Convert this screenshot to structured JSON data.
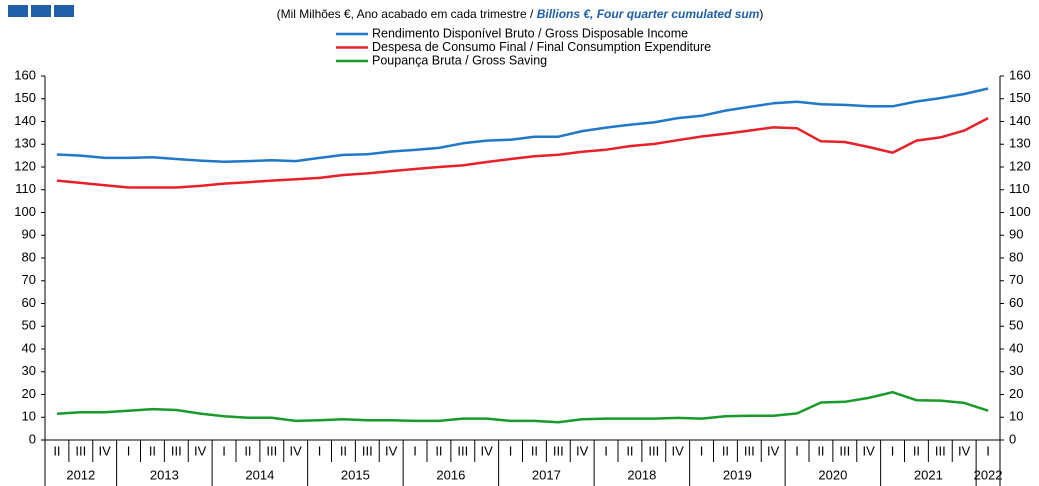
{
  "chart_data": {
    "type": "line",
    "subtitle_pt": "(Mil Milhões  €, Ano acabado em cada trimestre / ",
    "subtitle_en": "Billions €, Four quarter cumulated sum",
    "subtitle_end": ")",
    "groups": [
      {
        "label": "2012",
        "quarters": [
          "II",
          "III",
          "IV"
        ]
      },
      {
        "label": "2013",
        "quarters": [
          "I",
          "II",
          "III",
          "IV"
        ]
      },
      {
        "label": "2014",
        "quarters": [
          "I",
          "II",
          "III",
          "IV"
        ]
      },
      {
        "label": "2015",
        "quarters": [
          "I",
          "II",
          "III",
          "IV"
        ]
      },
      {
        "label": "2016",
        "quarters": [
          "I",
          "II",
          "III",
          "IV"
        ]
      },
      {
        "label": "2017",
        "quarters": [
          "I",
          "II",
          "III",
          "IV"
        ]
      },
      {
        "label": "2018",
        "quarters": [
          "I",
          "II",
          "III",
          "IV"
        ]
      },
      {
        "label": "2019",
        "quarters": [
          "I",
          "II",
          "III",
          "IV"
        ]
      },
      {
        "label": "2020",
        "quarters": [
          "I",
          "II",
          "III",
          "IV"
        ]
      },
      {
        "label": "2021",
        "quarters": [
          "I",
          "II",
          "III",
          "IV"
        ]
      },
      {
        "label": "2022",
        "quarters": [
          "I"
        ]
      }
    ],
    "series": [
      {
        "name": "Rendimento Disponível Bruto / Gross Disposable Income",
        "color": "#1f78c8",
        "values": [
          125.5,
          125,
          124,
          124,
          124.3,
          123.5,
          122.8,
          122.3,
          122.6,
          123,
          122.6,
          124,
          125.3,
          125.6,
          126.8,
          127.5,
          128.4,
          130.4,
          131.6,
          132,
          133.3,
          133.3,
          135.8,
          137.3,
          138.6,
          139.6,
          141.5,
          142.5,
          144.8,
          146.4,
          148,
          148.7,
          147.6,
          147.3,
          146.7,
          146.7,
          148.8,
          150.3,
          152.1,
          154.5
        ]
      },
      {
        "name": "Despesa de Consumo Final / Final Consumption Expenditure",
        "color": "#e8202a",
        "values": [
          114,
          113,
          112,
          111,
          111,
          111,
          111.7,
          112.7,
          113.3,
          114,
          114.6,
          115.2,
          116.5,
          117.2,
          118.2,
          119.1,
          120,
          120.7,
          122.2,
          123.5,
          124.7,
          125.4,
          126.7,
          127.6,
          129.2,
          130.1,
          131.8,
          133.4,
          134.6,
          136,
          137.4,
          137,
          131.3,
          131,
          128.8,
          126.3,
          131.6,
          133,
          136,
          141.5
        ]
      },
      {
        "name": "Poupança Bruta / Gross Saving",
        "color": "#1a9a2a",
        "values": [
          11.5,
          12.2,
          12.2,
          12.9,
          13.6,
          13.2,
          11.6,
          10.4,
          9.8,
          9.8,
          8.4,
          8.7,
          9.1,
          8.7,
          8.7,
          8.4,
          8.4,
          9.4,
          9.4,
          8.4,
          8.4,
          7.8,
          9.1,
          9.4,
          9.4,
          9.4,
          9.7,
          9.4,
          10.4,
          10.7,
          10.7,
          11.7,
          16.5,
          16.8,
          18.5,
          21,
          17.5,
          17.3,
          16.3,
          12.9
        ]
      }
    ],
    "ylim": [
      0,
      160
    ],
    "yticks": [
      0,
      10,
      20,
      30,
      40,
      50,
      60,
      70,
      80,
      90,
      100,
      110,
      120,
      130,
      140,
      150,
      160
    ],
    "y2lim": [
      0,
      160
    ],
    "y2ticks": [
      0,
      10,
      20,
      30,
      40,
      50,
      60,
      70,
      80,
      90,
      100,
      110,
      120,
      130,
      140,
      150,
      160
    ],
    "grid": false
  }
}
